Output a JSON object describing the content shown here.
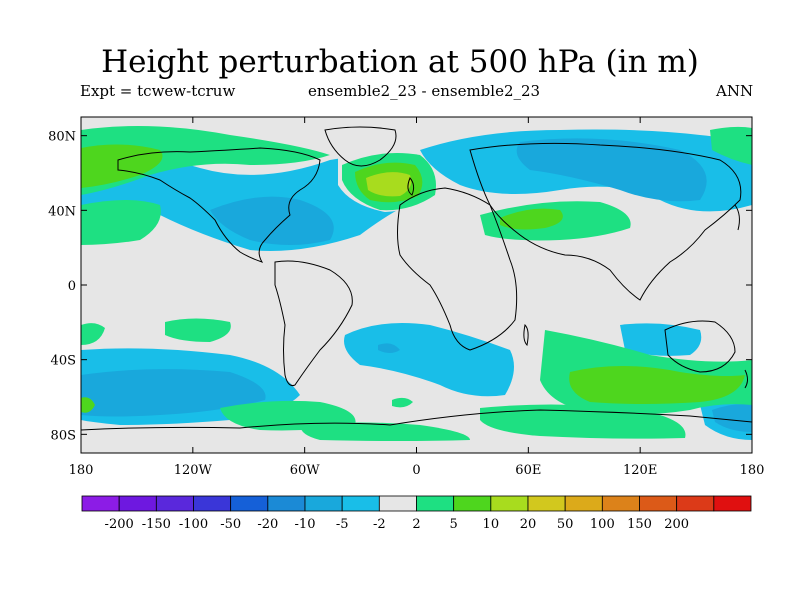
{
  "title": "Height perturbation at 500 hPa (in m)",
  "subtitle_left": "Expt = tcwew-tcruw",
  "subtitle_center": "ensemble2_23 - ensemble2_23",
  "subtitle_right": "ANN",
  "axes": {
    "lat_labels": [
      {
        "lat": 80,
        "label": "80N"
      },
      {
        "lat": 40,
        "label": "40N"
      },
      {
        "lat": 0,
        "label": "0"
      },
      {
        "lat": -40,
        "label": "40S"
      },
      {
        "lat": -80,
        "label": "80S"
      }
    ],
    "lon_labels": [
      {
        "lon": -180,
        "label": "180"
      },
      {
        "lon": -120,
        "label": "120W"
      },
      {
        "lon": -60,
        "label": "60W"
      },
      {
        "lon": 0,
        "label": "0"
      },
      {
        "lon": 60,
        "label": "60E"
      },
      {
        "lon": 120,
        "label": "120E"
      },
      {
        "lon": 180,
        "label": "180"
      }
    ]
  },
  "colorbar": {
    "colors": [
      "#8c1ce6",
      "#6e18e0",
      "#5a28dc",
      "#3a36d8",
      "#1560d8",
      "#1b8ad6",
      "#19a8dc",
      "#19bee8",
      "#e6e6e6",
      "#1ee082",
      "#4ed61e",
      "#a8dc1e",
      "#d2c81e",
      "#dcaa1a",
      "#dc821a",
      "#dc5a18",
      "#dc3a18",
      "#e01010"
    ],
    "labels": [
      "-200",
      "-150",
      "-100",
      "-50",
      "-20",
      "-10",
      "-5",
      "-2",
      "2",
      "5",
      "10",
      "20",
      "50",
      "100",
      "150",
      "200"
    ]
  },
  "chart_data": {
    "type": "heatmap",
    "projection": "cylindrical-equidistant",
    "lon_range": [
      -180,
      180
    ],
    "lat_range": [
      -90,
      90
    ],
    "variable": "500 hPa geopotential height perturbation",
    "units": "m",
    "levels": [
      -200,
      -150,
      -100,
      -50,
      -20,
      -10,
      -5,
      -2,
      2,
      5,
      10,
      20,
      50,
      100,
      150,
      200
    ],
    "features": [
      {
        "name": "north-atlantic-high",
        "lon": -10,
        "lat": 52,
        "level_range": [
          5,
          20
        ],
        "peak": 20
      },
      {
        "name": "north-america-low",
        "lon": -70,
        "lat": 38,
        "level_range": [
          -10,
          -2
        ],
        "peak": -10
      },
      {
        "name": "siberia-low",
        "lon": 70,
        "lat": 55,
        "level_range": [
          -10,
          -2
        ],
        "peak": -5
      },
      {
        "name": "central-asia-high",
        "lon": 60,
        "lat": 40,
        "level_range": [
          5,
          10
        ],
        "peak": 10
      },
      {
        "name": "arctic-high-west",
        "lon": -160,
        "lat": 72,
        "level_range": [
          5,
          10
        ],
        "peak": 10
      },
      {
        "name": "arctic-high-east",
        "lon": 160,
        "lat": 65,
        "level_range": [
          2,
          5
        ],
        "peak": 5
      },
      {
        "name": "southern-indian-ocean-high",
        "lon": 110,
        "lat": -50,
        "level_range": [
          5,
          10
        ],
        "peak": 10
      },
      {
        "name": "south-atlantic-low",
        "lon": 20,
        "lat": -43,
        "level_range": [
          -5,
          -2
        ],
        "peak": -5
      },
      {
        "name": "south-pacific-low",
        "lon": -135,
        "lat": -58,
        "level_range": [
          -10,
          -2
        ],
        "peak": -10
      },
      {
        "name": "southeast-pacific-high",
        "lon": -115,
        "lat": -73,
        "level_range": [
          2,
          5
        ],
        "peak": 5
      },
      {
        "name": "south-pacific-east-low",
        "lon": 170,
        "lat": -73,
        "level_range": [
          -10,
          -2
        ],
        "peak": -5
      },
      {
        "name": "tropical-pacific-high-1",
        "lon": -122,
        "lat": -20,
        "level_range": [
          2,
          5
        ],
        "peak": 5
      },
      {
        "name": "tropical-pacific-high-2",
        "lon": -168,
        "lat": -28,
        "level_range": [
          2,
          5
        ],
        "peak": 5
      },
      {
        "name": "north-pacific-high",
        "lon": -170,
        "lat": 40,
        "level_range": [
          2,
          5
        ],
        "peak": 5
      }
    ]
  }
}
